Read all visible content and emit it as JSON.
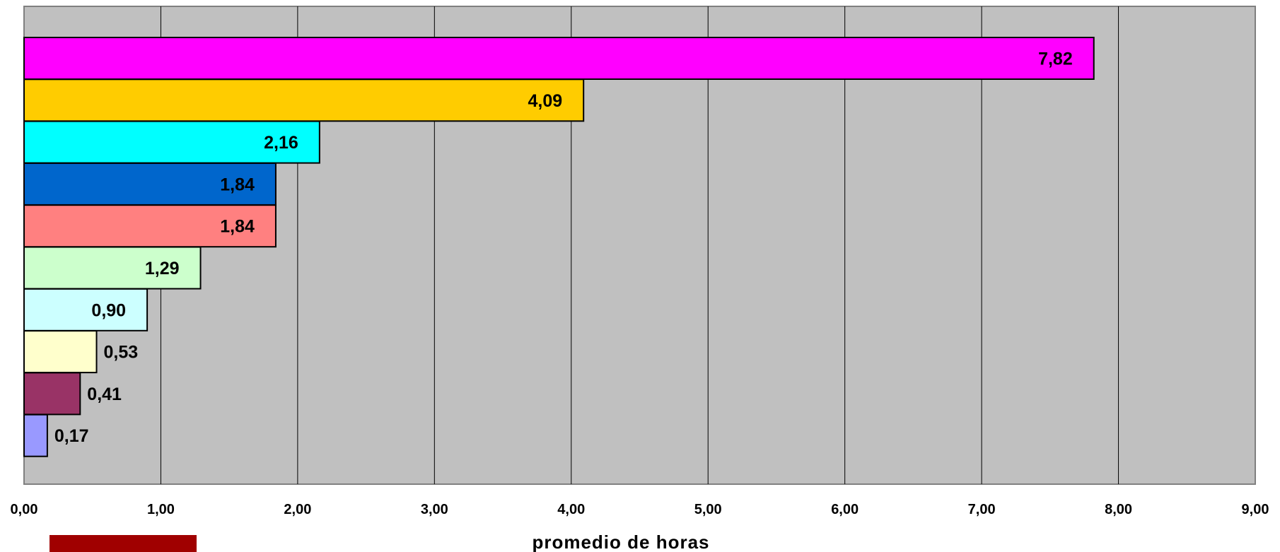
{
  "chart_data": {
    "type": "bar",
    "orientation": "horizontal",
    "title": "",
    "xlabel": "promedio de horas",
    "ylabel": "",
    "xlim": [
      0,
      9
    ],
    "x_ticks": [
      "0,00",
      "1,00",
      "2,00",
      "3,00",
      "4,00",
      "5,00",
      "6,00",
      "7,00",
      "8,00",
      "9,00"
    ],
    "grid": "vertical",
    "plot_background": "#c0c0c0",
    "values": [
      7.82,
      4.09,
      2.16,
      1.84,
      1.84,
      1.29,
      0.9,
      0.53,
      0.41,
      0.17
    ],
    "data_labels": [
      "7,82",
      "4,09",
      "2,16",
      "1,84",
      "1,84",
      "1,29",
      "0,90",
      "0,53",
      "0,41",
      "0,17"
    ],
    "colors": [
      "#ff00ff",
      "#ffcc00",
      "#00ffff",
      "#0066cc",
      "#ff8080",
      "#ccffcc",
      "#ccffff",
      "#ffffcc",
      "#993366",
      "#9999ff"
    ],
    "legend_swatch_color": "#a00000"
  }
}
